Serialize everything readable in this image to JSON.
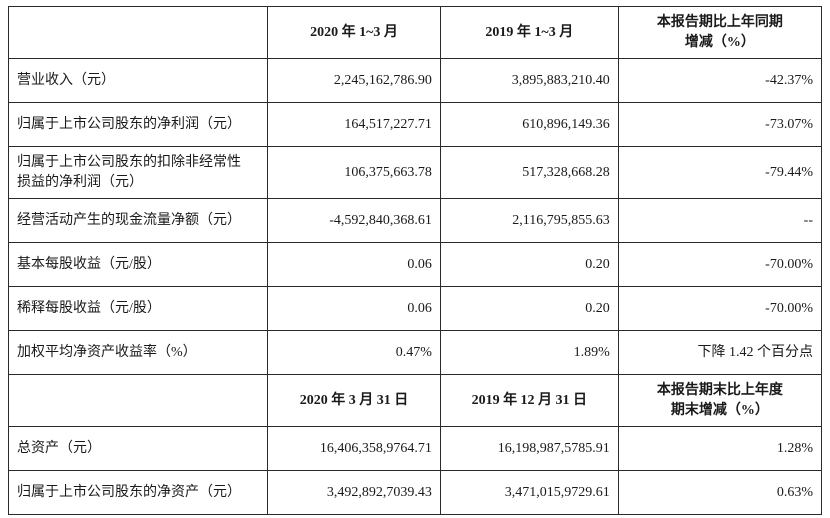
{
  "table": {
    "font_family": "SimSun",
    "border_color": "#2a2a2a",
    "text_color": "#1a1a1a",
    "background_color": "#ffffff",
    "cell_font_size": 14,
    "columns": {
      "label_width": 255,
      "v1_width": 170,
      "v2_width": 175,
      "chg_width": 200,
      "label_align": "left",
      "value_align": "right",
      "header_align": "center"
    },
    "header1": {
      "blank": "",
      "col_v1": "2020 年 1~3 月",
      "col_v2": "2019 年 1~3 月",
      "col_chg_line1": "本报告期比上年同期",
      "col_chg_line2": "增减（%）"
    },
    "rows1": [
      {
        "label": "营业收入（元）",
        "v1": "2,245,162,786.90",
        "v2": "3,895,883,210.40",
        "chg": "-42.37%"
      },
      {
        "label": "归属于上市公司股东的净利润（元）",
        "v1": "164,517,227.71",
        "v2": "610,896,149.36",
        "chg": "-73.07%"
      },
      {
        "label_line1": "归属于上市公司股东的扣除非经常性",
        "label_line2": "损益的净利润（元）",
        "v1": "106,375,663.78",
        "v2": "517,328,668.28",
        "chg": "-79.44%"
      },
      {
        "label": "经营活动产生的现金流量净额（元）",
        "v1": "-4,592,840,368.61",
        "v2": "2,116,795,855.63",
        "chg": "--"
      },
      {
        "label": "基本每股收益（元/股）",
        "v1": "0.06",
        "v2": "0.20",
        "chg": "-70.00%"
      },
      {
        "label": "稀释每股收益（元/股）",
        "v1": "0.06",
        "v2": "0.20",
        "chg": "-70.00%"
      },
      {
        "label": "加权平均净资产收益率（%）",
        "v1": "0.47%",
        "v2": "1.89%",
        "chg": "下降 1.42 个百分点"
      }
    ],
    "header2": {
      "blank": "",
      "col_v1": "2020 年 3 月 31 日",
      "col_v2": "2019 年 12 月 31 日",
      "col_chg_line1": "本报告期末比上年度",
      "col_chg_line2": "期末增减（%）"
    },
    "rows2": [
      {
        "label": "总资产（元）",
        "v1": "16,406,358,9764.71",
        "v2": "16,198,987,5785.91",
        "chg": "1.28%"
      },
      {
        "label": "归属于上市公司股东的净资产（元）",
        "v1": "3,492,892,7039.43",
        "v2": "3,471,015,9729.61",
        "chg": "0.63%"
      }
    ]
  }
}
